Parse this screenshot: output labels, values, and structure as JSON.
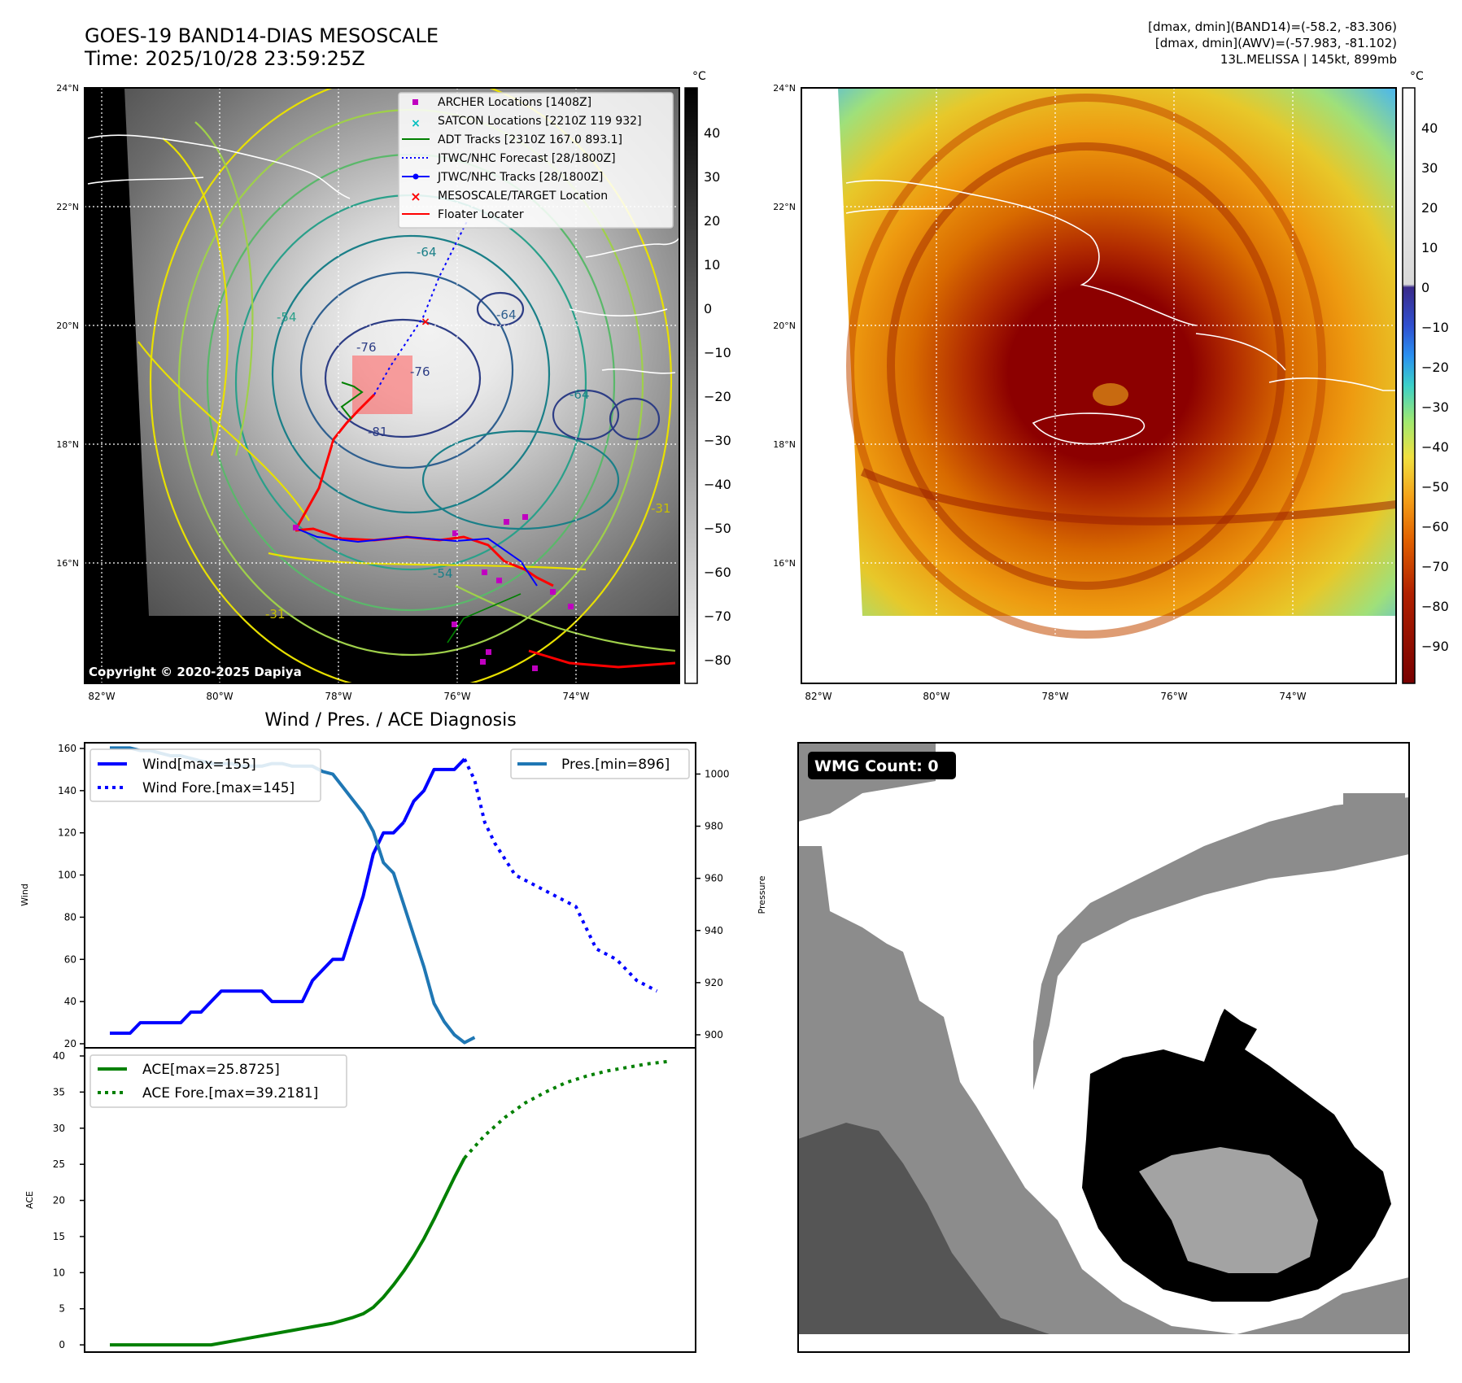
{
  "header": {
    "title_line1": "GOES-19 BAND14-DIAS MESOSCALE",
    "title_line2": "Time: 2025/10/28 23:59:25Z",
    "info_line1": "[dmax, dmin](BAND14)=(-58.2, -83.306)",
    "info_line2": "[dmax, dmin](AWV)=(-57.983, -81.102)",
    "info_line3": "13L.MELISSA | 145kt, 899mb"
  },
  "map_ir": {
    "lat_labels": [
      "24°N",
      "22°N",
      "20°N",
      "18°N",
      "16°N"
    ],
    "lon_labels": [
      "82°W",
      "80°W",
      "78°W",
      "76°W",
      "74°W"
    ],
    "copyright": "Copyright © 2020-2025 Dapiya",
    "legend": [
      {
        "label": "ARCHER Locations [1408Z]",
        "marker": "square",
        "color": "#c000c0"
      },
      {
        "label": "SATCON Locations [2210Z 119 932]",
        "marker": "x",
        "color": "#00bfbf"
      },
      {
        "label": "ADT Tracks [2310Z 167.0 893.1]",
        "marker": "line",
        "color": "#008000"
      },
      {
        "label": "JTWC/NHC Forecast [28/1800Z]",
        "marker": "dotted",
        "color": "#0000ff"
      },
      {
        "label": "JTWC/NHC Tracks [28/1800Z]",
        "marker": "line-dot",
        "color": "#0000ff"
      },
      {
        "label": "MESOSCALE/TARGET Location",
        "marker": "x",
        "color": "#ff0000"
      },
      {
        "label": "Floater Locater",
        "marker": "line",
        "color": "#ff0000"
      }
    ],
    "contour_labels": [
      "-76",
      "-76",
      "-81",
      "-64",
      "-54",
      "-64",
      "-31",
      "-54",
      "-31",
      "-64"
    ],
    "colorbar": {
      "unit": "°C",
      "ticks": [
        "40",
        "30",
        "20",
        "10",
        "0",
        "−10",
        "−20",
        "−30",
        "−40",
        "−50",
        "−60",
        "−70",
        "−80"
      ]
    }
  },
  "map_awv": {
    "lat_labels": [
      "24°N",
      "22°N",
      "20°N",
      "18°N",
      "16°N"
    ],
    "lon_labels": [
      "82°W",
      "80°W",
      "78°W",
      "76°W",
      "74°W"
    ],
    "colorbar": {
      "unit": "°C",
      "ticks": [
        "40",
        "30",
        "20",
        "10",
        "0",
        "−10",
        "−20",
        "−30",
        "−40",
        "−50",
        "−60",
        "−70",
        "−80",
        "−90"
      ]
    }
  },
  "chart_data": [
    {
      "type": "line",
      "title": "Wind / Pres. / ACE Diagnosis",
      "ylabel": "Wind",
      "ylabel_right": "Pressure",
      "ylim": [
        20,
        160
      ],
      "ylim_right": [
        895,
        1012
      ],
      "yticks": [
        20,
        40,
        60,
        80,
        100,
        120,
        140,
        160
      ],
      "yticks_right": [
        900,
        920,
        940,
        960,
        980,
        1000
      ],
      "legend_left": [
        "Wind[max=155]",
        "Wind Fore.[max=145]"
      ],
      "legend_right": [
        "Pres.[min=896]"
      ],
      "series": [
        {
          "name": "Wind[max=155]",
          "color": "#0000ff",
          "style": "solid",
          "x": [
            0,
            2,
            3,
            4,
            5,
            6,
            7,
            8,
            9,
            10,
            11,
            12,
            13,
            14,
            15,
            16,
            17,
            18,
            19,
            20,
            21,
            22,
            23,
            24,
            25,
            26,
            27,
            28,
            29
          ],
          "values": [
            25,
            25,
            30,
            30,
            30,
            30,
            30,
            35,
            35,
            40,
            45,
            45,
            45,
            45,
            45,
            40,
            40,
            40,
            40,
            50,
            55,
            60,
            60,
            75,
            90,
            110,
            120,
            120,
            125
          ]
        },
        {
          "name": "Wind[max=155] cont",
          "color": "#0000ff",
          "style": "solid",
          "x": [
            29,
            30,
            31,
            32,
            33,
            34,
            35
          ],
          "values": [
            125,
            135,
            140,
            150,
            150,
            150,
            155
          ]
        },
        {
          "name": "Wind Fore.[max=145]",
          "color": "#0000ff",
          "style": "dotted",
          "x": [
            35,
            36,
            37,
            38,
            40,
            42,
            44,
            46,
            48,
            50,
            52,
            54
          ],
          "values": [
            155,
            145,
            125,
            115,
            100,
            95,
            90,
            85,
            65,
            60,
            50,
            45
          ]
        },
        {
          "name": "Pres.[min=896]",
          "color": "#1f77b4",
          "style": "solid",
          "axis": "right",
          "x": [
            0,
            1,
            2,
            3,
            4,
            5,
            6,
            7,
            8,
            9,
            10,
            11,
            12,
            13,
            14,
            15,
            16,
            17,
            18,
            19,
            20,
            21,
            22,
            23,
            24,
            25,
            26,
            27,
            28,
            29,
            30,
            31,
            32,
            33,
            34,
            35,
            36
          ],
          "values": [
            1010,
            1010,
            1010,
            1009,
            1009,
            1008,
            1007,
            1007,
            1006,
            1005,
            1004,
            1004,
            1004,
            1003,
            1003,
            1003,
            1004,
            1004,
            1003,
            1003,
            1003,
            1001,
            1000,
            995,
            990,
            985,
            978,
            966,
            962,
            950,
            938,
            926,
            912,
            905,
            900,
            897,
            899
          ]
        }
      ]
    },
    {
      "type": "line",
      "title": "",
      "ylabel": "ACE",
      "ylim": [
        -1,
        40
      ],
      "yticks": [
        0,
        5,
        10,
        15,
        20,
        25,
        30,
        35,
        40
      ],
      "legend": [
        "ACE[max=25.8725]",
        "ACE Fore.[max=39.2181]"
      ],
      "series": [
        {
          "name": "ACE[max=25.8725]",
          "color": "#008000",
          "style": "solid",
          "x": [
            0,
            2,
            4,
            6,
            8,
            10,
            12,
            14,
            16,
            18,
            20,
            22,
            24,
            25,
            26,
            27,
            28,
            29,
            30,
            31,
            32,
            33,
            34,
            35
          ],
          "values": [
            0,
            0,
            0,
            0,
            0,
            0,
            0.5,
            1.0,
            1.5,
            2.0,
            2.5,
            3.0,
            3.8,
            4.3,
            5.2,
            6.6,
            8.3,
            10.2,
            12.3,
            14.7,
            17.4,
            20.3,
            23.2,
            25.87
          ]
        },
        {
          "name": "ACE Fore.[max=39.2181]",
          "color": "#008000",
          "style": "dotted",
          "x": [
            35,
            37,
            39,
            41,
            43,
            45,
            47,
            49,
            51,
            53,
            55
          ],
          "values": [
            25.87,
            29,
            31.5,
            33.5,
            35,
            36.3,
            37.2,
            37.9,
            38.4,
            38.9,
            39.22
          ]
        }
      ]
    }
  ],
  "wmg_panel": {
    "label": "WMG Count: 0"
  }
}
